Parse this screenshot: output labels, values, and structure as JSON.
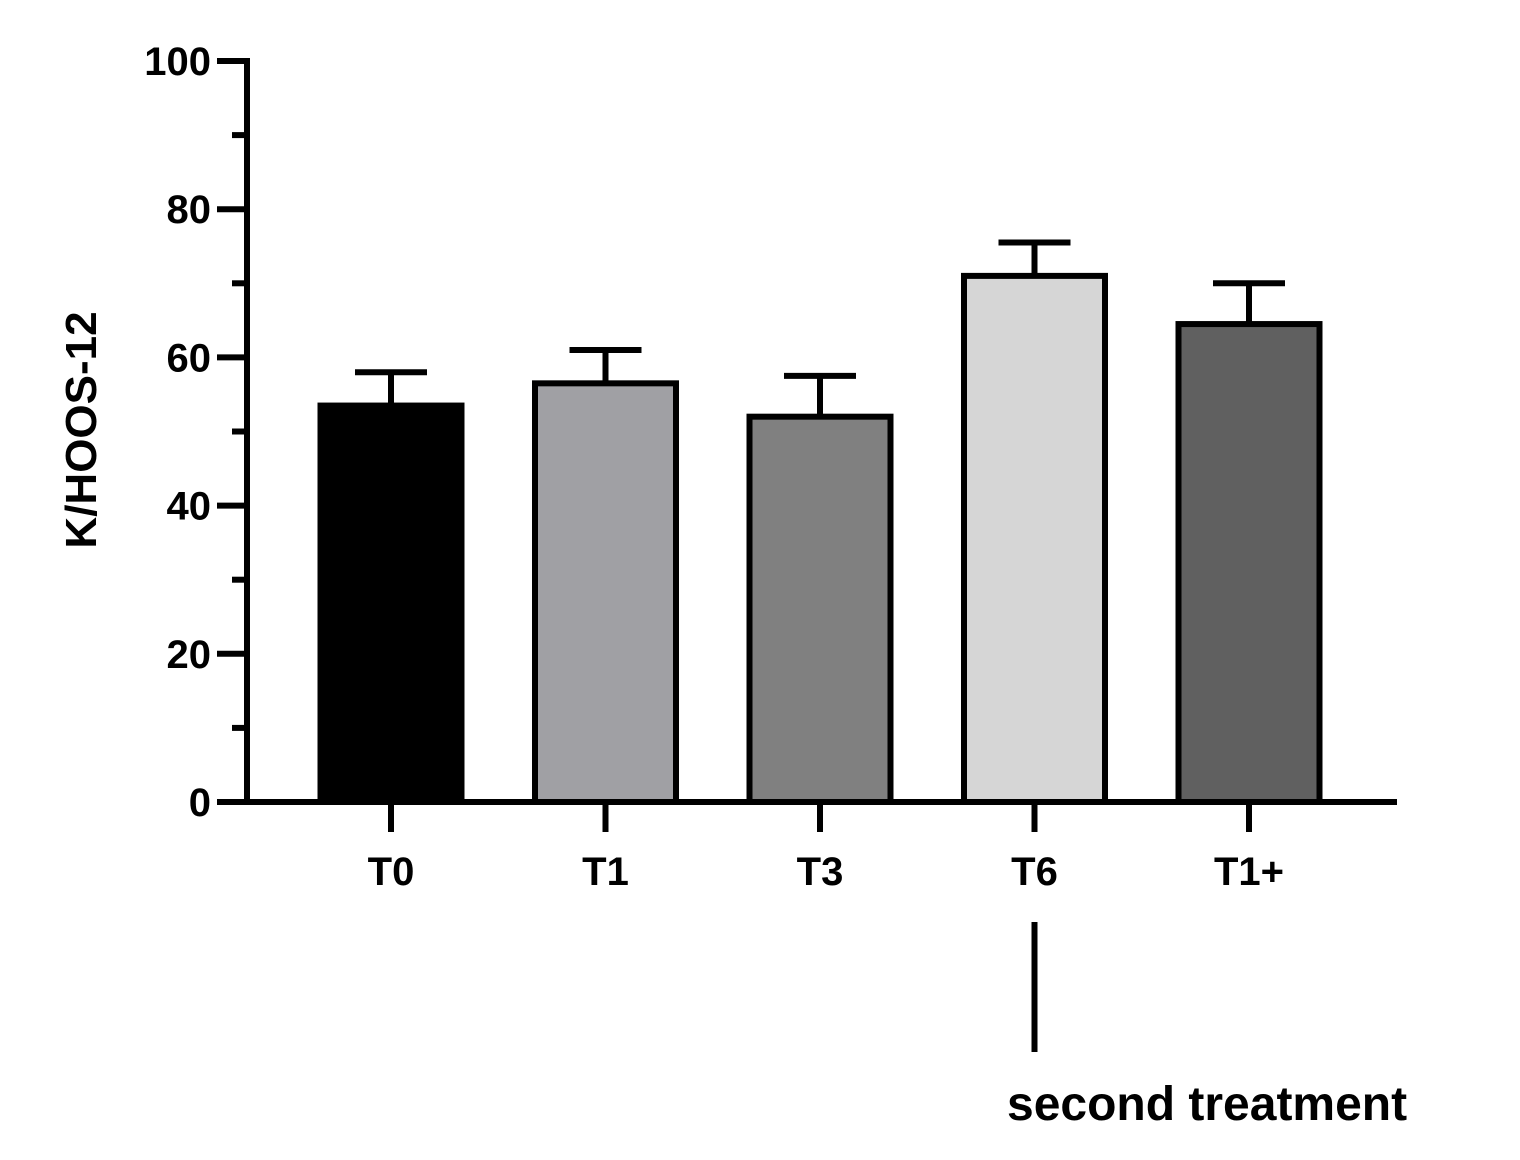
{
  "chart_data": {
    "type": "bar",
    "categories": [
      "T0",
      "T1",
      "T3",
      "T6",
      "T1+"
    ],
    "values": [
      53.5,
      56.5,
      52,
      71,
      64.5
    ],
    "error_upper": [
      58,
      61,
      57.5,
      75.5,
      70
    ],
    "bar_colors": [
      "#000000",
      "#a0a0a4",
      "#808080",
      "#d6d6d6",
      "#606060"
    ],
    "title": "",
    "xlabel": "",
    "ylabel": "K/HOOS-12",
    "ylim": [
      0,
      100
    ],
    "yticks": [
      0,
      20,
      40,
      60,
      80,
      100
    ],
    "grid": false,
    "legend": "none",
    "annotation": {
      "text": "second treatment",
      "category": "T6"
    }
  }
}
